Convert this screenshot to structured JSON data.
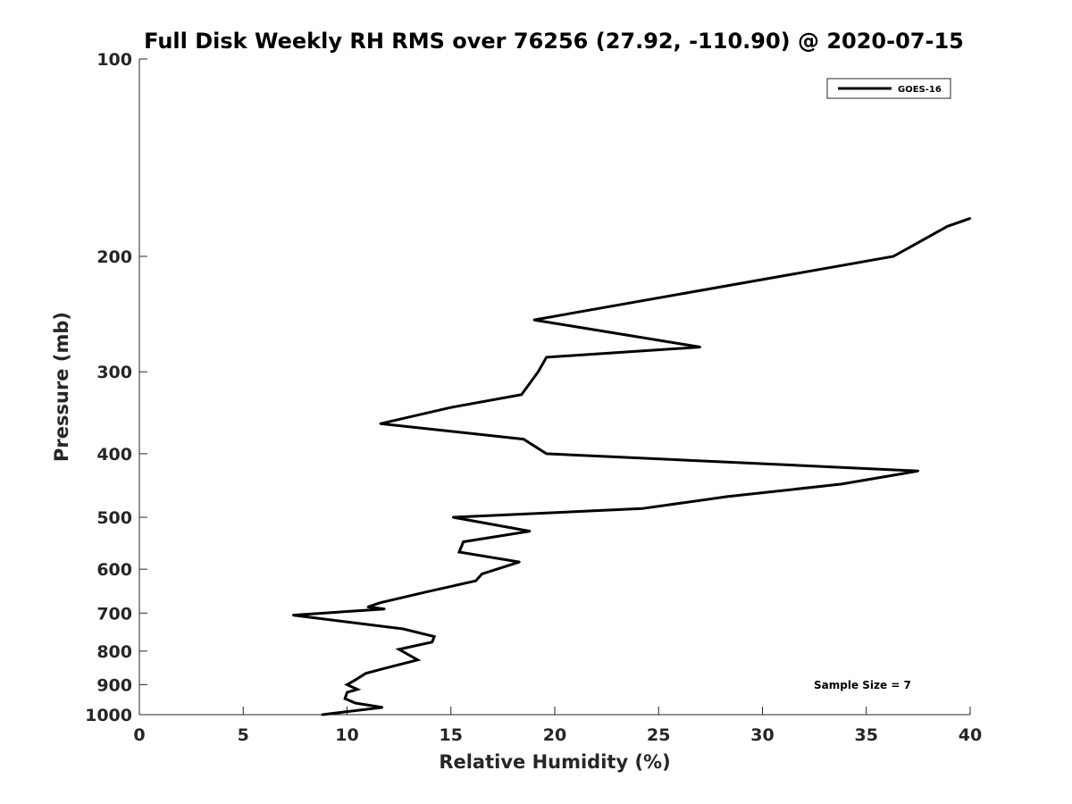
{
  "chart_data": {
    "type": "line",
    "title": "Full Disk Weekly RH RMS over 76256 (27.92, -110.90) @ 2020-07-15",
    "xlabel": "Relative Humidity (%)",
    "ylabel": "Pressure (mb)",
    "xlim": [
      0,
      40
    ],
    "ylim": [
      100,
      1000
    ],
    "y_scale": "log",
    "y_reversed": true,
    "grid": false,
    "legend_position": "top-right",
    "x_ticks": [
      0,
      5,
      10,
      15,
      20,
      25,
      30,
      35,
      40
    ],
    "y_ticks": [
      100,
      200,
      300,
      400,
      500,
      600,
      700,
      800,
      900,
      1000
    ],
    "annotation": "Sample Size = 7",
    "series": [
      {
        "name": "GOES-16",
        "color": "#000000",
        "points": [
          [
            40.0,
            175
          ],
          [
            38.9,
            180
          ],
          [
            36.3,
            200
          ],
          [
            19.0,
            250
          ],
          [
            27.0,
            275
          ],
          [
            19.6,
            285
          ],
          [
            19.2,
            300
          ],
          [
            18.4,
            325
          ],
          [
            15.0,
            340
          ],
          [
            11.6,
            360
          ],
          [
            18.5,
            380
          ],
          [
            19.6,
            400
          ],
          [
            37.5,
            425
          ],
          [
            33.8,
            445
          ],
          [
            28.3,
            465
          ],
          [
            24.2,
            485
          ],
          [
            15.1,
            500
          ],
          [
            18.8,
            525
          ],
          [
            15.6,
            545
          ],
          [
            15.4,
            565
          ],
          [
            18.3,
            585
          ],
          [
            16.5,
            610
          ],
          [
            16.2,
            625
          ],
          [
            13.8,
            650
          ],
          [
            11.6,
            675
          ],
          [
            11.0,
            685
          ],
          [
            11.8,
            690
          ],
          [
            7.4,
            705
          ],
          [
            12.7,
            740
          ],
          [
            14.2,
            760
          ],
          [
            14.1,
            775
          ],
          [
            12.5,
            795
          ],
          [
            13.4,
            825
          ],
          [
            11.8,
            850
          ],
          [
            10.9,
            865
          ],
          [
            10.4,
            885
          ],
          [
            10.0,
            900
          ],
          [
            10.5,
            915
          ],
          [
            10.0,
            925
          ],
          [
            9.9,
            945
          ],
          [
            10.4,
            960
          ],
          [
            11.7,
            975
          ],
          [
            8.8,
            1000
          ]
        ]
      }
    ]
  }
}
